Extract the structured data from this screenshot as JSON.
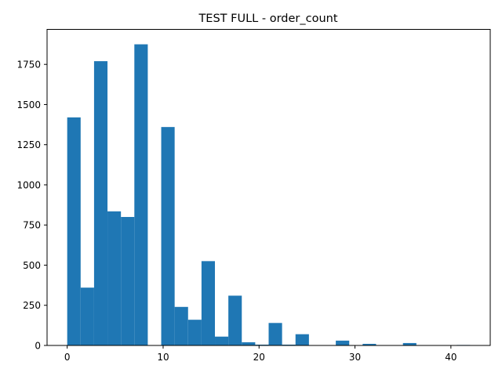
{
  "chart_data": {
    "type": "bar",
    "title": "TEST FULL   - order_count",
    "xlabel": "",
    "ylabel": "",
    "bar_color": "#1f77b4",
    "xlim": [
      -2.1,
      44.1
    ],
    "ylim": [
      0,
      1968
    ],
    "bin_width": 1.4,
    "bins": [
      {
        "x0": 0.0,
        "value": 1420
      },
      {
        "x0": 1.4,
        "value": 360
      },
      {
        "x0": 2.8,
        "value": 1770
      },
      {
        "x0": 4.2,
        "value": 835
      },
      {
        "x0": 5.6,
        "value": 800
      },
      {
        "x0": 7.0,
        "value": 1875
      },
      {
        "x0": 8.4,
        "value": 0
      },
      {
        "x0": 9.8,
        "value": 1360
      },
      {
        "x0": 11.2,
        "value": 240
      },
      {
        "x0": 12.6,
        "value": 160
      },
      {
        "x0": 14.0,
        "value": 525
      },
      {
        "x0": 15.4,
        "value": 55
      },
      {
        "x0": 16.8,
        "value": 310
      },
      {
        "x0": 18.2,
        "value": 20
      },
      {
        "x0": 19.6,
        "value": 5
      },
      {
        "x0": 21.0,
        "value": 140
      },
      {
        "x0": 22.4,
        "value": 5
      },
      {
        "x0": 23.8,
        "value": 70
      },
      {
        "x0": 25.2,
        "value": 0
      },
      {
        "x0": 26.6,
        "value": 0
      },
      {
        "x0": 28.0,
        "value": 30
      },
      {
        "x0": 29.4,
        "value": 0
      },
      {
        "x0": 30.8,
        "value": 10
      },
      {
        "x0": 32.2,
        "value": 0
      },
      {
        "x0": 33.6,
        "value": 0
      },
      {
        "x0": 35.0,
        "value": 15
      },
      {
        "x0": 36.4,
        "value": 0
      },
      {
        "x0": 37.8,
        "value": 0
      },
      {
        "x0": 39.2,
        "value": 0
      },
      {
        "x0": 40.6,
        "value": 3
      }
    ],
    "xticks": [
      0,
      10,
      20,
      30,
      40
    ],
    "yticks": [
      0,
      250,
      500,
      750,
      1000,
      1250,
      1500,
      1750
    ],
    "ytick_labels": [
      "0",
      "250",
      "500",
      "750",
      "1000",
      "1250",
      "1500",
      "1750"
    ],
    "grid": false,
    "legend": "none"
  }
}
